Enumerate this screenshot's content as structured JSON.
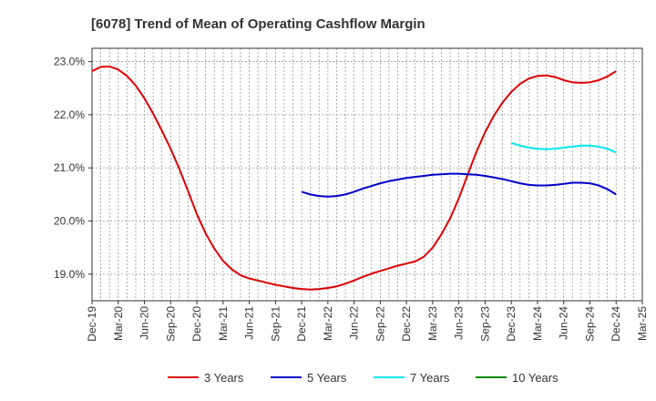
{
  "chart_data": {
    "type": "line",
    "title": "[6078]  Trend of Mean of Operating Cashflow Margin",
    "xlabel": "",
    "ylabel": "",
    "x_ticks": [
      "Dec-19",
      "Mar-20",
      "Jun-20",
      "Sep-20",
      "Dec-20",
      "Mar-21",
      "Jun-21",
      "Sep-21",
      "Dec-21",
      "Mar-22",
      "Jun-22",
      "Sep-22",
      "Dec-22",
      "Mar-23",
      "Jun-23",
      "Sep-23",
      "Dec-23",
      "Mar-24",
      "Jun-24",
      "Sep-24",
      "Dec-24",
      "Mar-25"
    ],
    "y_ticks": [
      "19.0%",
      "20.0%",
      "21.0%",
      "22.0%",
      "23.0%"
    ],
    "y_tick_values": [
      19.0,
      20.0,
      21.0,
      22.0,
      23.0
    ],
    "ylim": [
      18.5,
      23.25
    ],
    "grid": true,
    "legend_position": "bottom",
    "series": [
      {
        "name": "3 Years",
        "color": "#dd0000",
        "x": [
          "Dec-19",
          "Jan-20",
          "Feb-20",
          "Mar-20",
          "Apr-20",
          "May-20",
          "Jun-20",
          "Jul-20",
          "Aug-20",
          "Sep-20",
          "Oct-20",
          "Nov-20",
          "Dec-20",
          "Jan-21",
          "Feb-21",
          "Mar-21",
          "Apr-21",
          "May-21",
          "Jun-21",
          "Jul-21",
          "Aug-21",
          "Sep-21",
          "Oct-21",
          "Nov-21",
          "Dec-21",
          "Jan-22",
          "Feb-22",
          "Mar-22",
          "Apr-22",
          "May-22",
          "Jun-22",
          "Jul-22",
          "Aug-22",
          "Sep-22",
          "Oct-22",
          "Nov-22",
          "Dec-22",
          "Jan-23",
          "Feb-23",
          "Mar-23",
          "Apr-23",
          "May-23",
          "Jun-23",
          "Jul-23",
          "Aug-23",
          "Sep-23",
          "Oct-23",
          "Nov-23",
          "Dec-23",
          "Jan-24",
          "Feb-24",
          "Mar-24",
          "Apr-24",
          "May-24",
          "Jun-24",
          "Jul-24",
          "Aug-24",
          "Sep-24",
          "Oct-24",
          "Nov-24",
          "Dec-24"
        ],
        "values": [
          22.82,
          22.9,
          22.91,
          22.85,
          22.73,
          22.55,
          22.31,
          22.02,
          21.7,
          21.36,
          20.98,
          20.56,
          20.13,
          19.77,
          19.48,
          19.25,
          19.09,
          18.98,
          18.92,
          18.88,
          18.84,
          18.8,
          18.77,
          18.74,
          18.72,
          18.71,
          18.72,
          18.74,
          18.77,
          18.82,
          18.88,
          18.95,
          19.01,
          19.06,
          19.11,
          19.16,
          19.2,
          19.24,
          19.33,
          19.5,
          19.75,
          20.05,
          20.43,
          20.87,
          21.3,
          21.67,
          21.98,
          22.23,
          22.43,
          22.58,
          22.68,
          22.73,
          22.74,
          22.71,
          22.65,
          22.61,
          22.6,
          22.61,
          22.65,
          22.72,
          22.82
        ]
      },
      {
        "name": "5 Years",
        "color": "#0000cc",
        "x": [
          "Dec-21",
          "Jan-22",
          "Feb-22",
          "Mar-22",
          "Apr-22",
          "May-22",
          "Jun-22",
          "Jul-22",
          "Aug-22",
          "Sep-22",
          "Oct-22",
          "Nov-22",
          "Dec-22",
          "Jan-23",
          "Feb-23",
          "Mar-23",
          "Apr-23",
          "May-23",
          "Jun-23",
          "Jul-23",
          "Aug-23",
          "Sep-23",
          "Oct-23",
          "Nov-23",
          "Dec-23",
          "Jan-24",
          "Feb-24",
          "Mar-24",
          "Apr-24",
          "May-24",
          "Jun-24",
          "Jul-24",
          "Aug-24",
          "Sep-24",
          "Oct-24",
          "Nov-24",
          "Dec-24"
        ],
        "values": [
          20.55,
          20.5,
          20.47,
          20.46,
          20.47,
          20.5,
          20.55,
          20.61,
          20.66,
          20.71,
          20.75,
          20.78,
          20.81,
          20.83,
          20.85,
          20.87,
          20.88,
          20.89,
          20.89,
          20.88,
          20.87,
          20.85,
          20.82,
          20.79,
          20.75,
          20.71,
          20.68,
          20.67,
          20.67,
          20.68,
          20.7,
          20.72,
          20.72,
          20.71,
          20.67,
          20.6,
          20.5
        ]
      },
      {
        "name": "7 Years",
        "color": "#00e5ee",
        "x": [
          "Dec-23",
          "Jan-24",
          "Feb-24",
          "Mar-24",
          "Apr-24",
          "May-24",
          "Jun-24",
          "Jul-24",
          "Aug-24",
          "Sep-24",
          "Oct-24",
          "Nov-24",
          "Dec-24"
        ],
        "values": [
          21.47,
          21.42,
          21.38,
          21.36,
          21.35,
          21.36,
          21.38,
          21.4,
          21.42,
          21.42,
          21.4,
          21.36,
          21.29
        ]
      },
      {
        "name": "10 Years",
        "color": "#008800",
        "x": [],
        "values": []
      }
    ]
  }
}
